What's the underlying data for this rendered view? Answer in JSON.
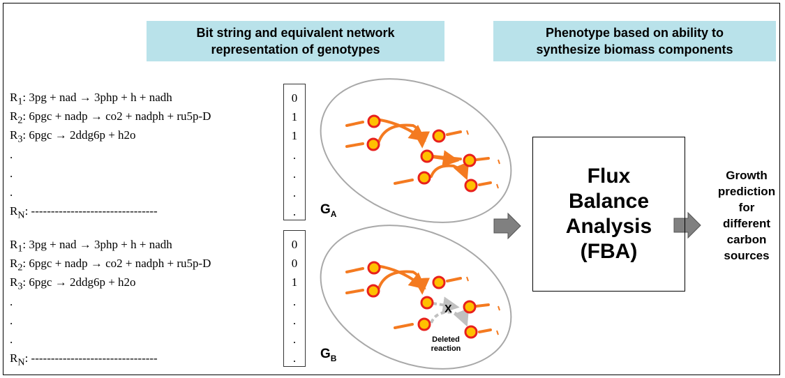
{
  "headers": {
    "genotype_line1": "Bit string and equivalent network",
    "genotype_line2": "representation of genotypes",
    "phenotype_line1": "Phenotype based on ability to",
    "phenotype_line2": "synthesize biomass components"
  },
  "genotype_a": {
    "reactions": [
      {
        "label": "R",
        "sub": "1",
        "equation": ": 3pg + nad → 3php + h + nadh"
      },
      {
        "label": "R",
        "sub": "2",
        "equation": ": 6pgc + nadp → co2 + nadph + ru5p-D"
      },
      {
        "label": "R",
        "sub": "3",
        "equation": ": 6pgc → 2ddg6p + h2o"
      },
      {
        "label": "",
        "sub": "",
        "equation": "."
      },
      {
        "label": "",
        "sub": "",
        "equation": "."
      },
      {
        "label": "",
        "sub": "",
        "equation": "."
      },
      {
        "label": "R",
        "sub": "N",
        "equation": ": --------------------------------"
      }
    ],
    "bits": [
      "0",
      "1",
      "1",
      ".",
      ".",
      ".",
      "."
    ],
    "network_label": "G",
    "network_sub": "A"
  },
  "genotype_b": {
    "reactions": [
      {
        "label": "R",
        "sub": "1",
        "equation": ": 3pg + nad → 3php + h + nadh"
      },
      {
        "label": "R",
        "sub": "2",
        "equation": ": 6pgc + nadp → co2 + nadph + ru5p-D"
      },
      {
        "label": "R",
        "sub": "3",
        "equation": ": 6pgc → 2ddg6p + h2o"
      },
      {
        "label": "",
        "sub": "",
        "equation": "."
      },
      {
        "label": "",
        "sub": "",
        "equation": "."
      },
      {
        "label": "",
        "sub": "",
        "equation": "."
      },
      {
        "label": "R",
        "sub": "N",
        "equation": ": --------------------------------"
      }
    ],
    "bits": [
      "0",
      "0",
      "1",
      ".",
      ".",
      ".",
      "."
    ],
    "network_label": "G",
    "network_sub": "B",
    "deleted_mark": "X",
    "deleted_line1": "Deleted",
    "deleted_line2": "reaction"
  },
  "fba": {
    "line1": "Flux",
    "line2": "Balance",
    "line3": "Analysis",
    "line4": "(FBA)"
  },
  "growth": {
    "lines": [
      "Growth",
      "prediction",
      "for",
      "different",
      "carbon",
      "sources"
    ]
  },
  "colors": {
    "header_bg": "#b9e2ea",
    "edge": "#f47a20",
    "node_fill": "#ffc000",
    "node_stroke": "#e8201c",
    "deleted_edge": "#c0c0c0",
    "arrow": "#808080"
  }
}
